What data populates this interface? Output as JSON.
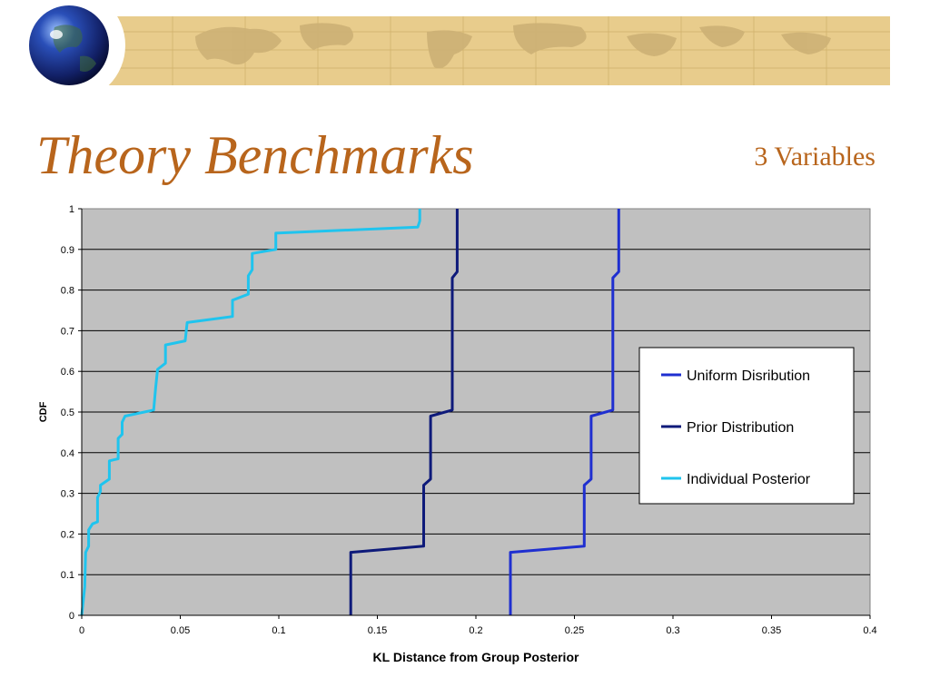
{
  "slide": {
    "title": "Theory Benchmarks",
    "subtitle": "3 Variables",
    "title_color": "#b8651c",
    "banner_color": "#e8cc8c",
    "globe_icon": "globe-icon"
  },
  "chart_data": {
    "type": "line",
    "title": "",
    "xlabel": "KL Distance from Group Posterior",
    "ylabel": "CDF",
    "xlim": [
      0,
      0.4
    ],
    "ylim": [
      0,
      1
    ],
    "x_ticks": [
      "0",
      "0.05",
      "0.1",
      "0.15",
      "0.2",
      "0.25",
      "0.3",
      "0.35",
      "0.4"
    ],
    "y_ticks": [
      "0",
      "0.1",
      "0.2",
      "0.3",
      "0.4",
      "0.5",
      "0.6",
      "0.7",
      "0.8",
      "0.9",
      "1"
    ],
    "grid": "horizontal",
    "plot_background": "#c0c0c0",
    "legend_position": "right",
    "series": [
      {
        "name": "Uniform Disribution",
        "color": "#1f2fd0",
        "points": [
          [
            0.2175,
            0
          ],
          [
            0.2175,
            0.155
          ],
          [
            0.255,
            0.17
          ],
          [
            0.255,
            0.32
          ],
          [
            0.2585,
            0.335
          ],
          [
            0.2585,
            0.49
          ],
          [
            0.2695,
            0.505
          ],
          [
            0.2695,
            0.83
          ],
          [
            0.2725,
            0.845
          ],
          [
            0.2725,
            1
          ]
        ]
      },
      {
        "name": "Prior Distribution",
        "color": "#0e1a7a",
        "points": [
          [
            0.1365,
            0
          ],
          [
            0.1365,
            0.155
          ],
          [
            0.1735,
            0.17
          ],
          [
            0.1735,
            0.32
          ],
          [
            0.177,
            0.335
          ],
          [
            0.177,
            0.49
          ],
          [
            0.188,
            0.505
          ],
          [
            0.188,
            0.83
          ],
          [
            0.1905,
            0.845
          ],
          [
            0.1905,
            1
          ]
        ]
      },
      {
        "name": "Individual Posterior",
        "color": "#1fc4ee",
        "points": [
          [
            0,
            0
          ],
          [
            0.0015,
            0.07
          ],
          [
            0.002,
            0.155
          ],
          [
            0.0035,
            0.17
          ],
          [
            0.0035,
            0.21
          ],
          [
            0.0055,
            0.225
          ],
          [
            0.008,
            0.23
          ],
          [
            0.008,
            0.29
          ],
          [
            0.0095,
            0.305
          ],
          [
            0.0095,
            0.32
          ],
          [
            0.014,
            0.335
          ],
          [
            0.014,
            0.38
          ],
          [
            0.0185,
            0.385
          ],
          [
            0.0185,
            0.435
          ],
          [
            0.0205,
            0.445
          ],
          [
            0.0205,
            0.475
          ],
          [
            0.022,
            0.49
          ],
          [
            0.0365,
            0.505
          ],
          [
            0.0375,
            0.56
          ],
          [
            0.0385,
            0.605
          ],
          [
            0.0425,
            0.62
          ],
          [
            0.0425,
            0.665
          ],
          [
            0.0525,
            0.675
          ],
          [
            0.0535,
            0.72
          ],
          [
            0.0765,
            0.735
          ],
          [
            0.0765,
            0.775
          ],
          [
            0.0845,
            0.79
          ],
          [
            0.0845,
            0.835
          ],
          [
            0.0865,
            0.85
          ],
          [
            0.0865,
            0.89
          ],
          [
            0.0985,
            0.9
          ],
          [
            0.0985,
            0.94
          ],
          [
            0.1705,
            0.955
          ],
          [
            0.1715,
            0.97
          ],
          [
            0.1715,
            1
          ]
        ]
      }
    ]
  }
}
